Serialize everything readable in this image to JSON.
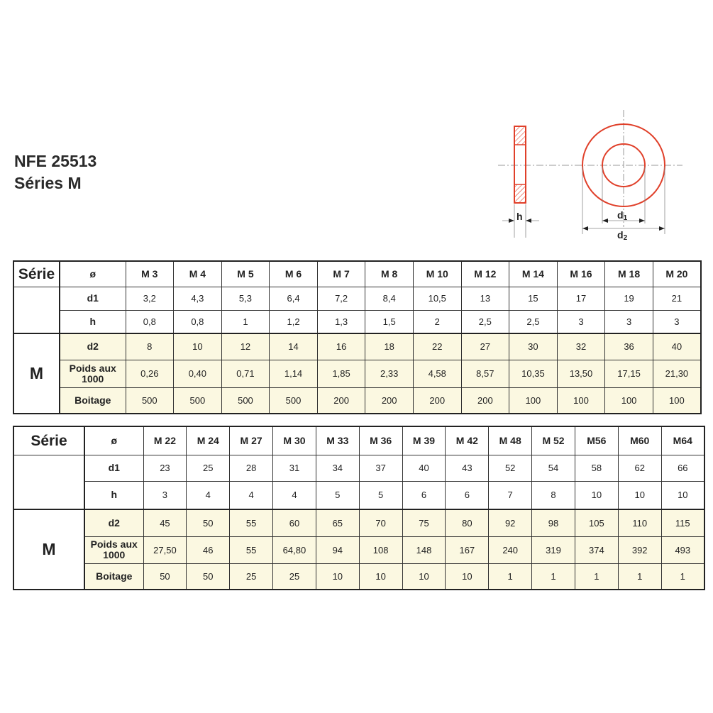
{
  "title": {
    "line1": "NFE 25513",
    "line2": "Séries M"
  },
  "diagram": {
    "h_label": "h",
    "d1_label": "d",
    "d1_sub": "1",
    "d2_label": "d",
    "d2_sub": "2",
    "color": "#e0402a"
  },
  "fill_color": "#fbf8e1",
  "tables": [
    {
      "serie_label": "Série",
      "serie_value": "M",
      "diam_label": "ø",
      "sizes": [
        "M 3",
        "M 4",
        "M 5",
        "M 6",
        "M 7",
        "M 8",
        "M 10",
        "M 12",
        "M 14",
        "M 16",
        "M 18",
        "M 20"
      ],
      "rows": [
        {
          "label": "d1",
          "values": [
            "3,2",
            "4,3",
            "5,3",
            "6,4",
            "7,2",
            "8,4",
            "10,5",
            "13",
            "15",
            "17",
            "19",
            "21"
          ]
        },
        {
          "label": "h",
          "values": [
            "0,8",
            "0,8",
            "1",
            "1,2",
            "1,3",
            "1,5",
            "2",
            "2,5",
            "2,5",
            "3",
            "3",
            "3"
          ]
        },
        {
          "label": "d2",
          "values": [
            "8",
            "10",
            "12",
            "14",
            "16",
            "18",
            "22",
            "27",
            "30",
            "32",
            "36",
            "40"
          ]
        },
        {
          "label": "Poids aux 1000",
          "values": [
            "0,26",
            "0,40",
            "0,71",
            "1,14",
            "1,85",
            "2,33",
            "4,58",
            "8,57",
            "10,35",
            "13,50",
            "17,15",
            "21,30"
          ]
        },
        {
          "label": "Boitage",
          "values": [
            "500",
            "500",
            "500",
            "500",
            "200",
            "200",
            "200",
            "200",
            "100",
            "100",
            "100",
            "100"
          ]
        }
      ]
    },
    {
      "serie_label": "Série",
      "serie_value": "M",
      "diam_label": "ø",
      "sizes": [
        "M 22",
        "M 24",
        "M 27",
        "M 30",
        "M 33",
        "M 36",
        "M 39",
        "M 42",
        "M 48",
        "M 52",
        "M56",
        "M60",
        "M64"
      ],
      "rows": [
        {
          "label": "d1",
          "values": [
            "23",
            "25",
            "28",
            "31",
            "34",
            "37",
            "40",
            "43",
            "52",
            "54",
            "58",
            "62",
            "66"
          ]
        },
        {
          "label": "h",
          "values": [
            "3",
            "4",
            "4",
            "4",
            "5",
            "5",
            "6",
            "6",
            "7",
            "8",
            "10",
            "10",
            "10"
          ]
        },
        {
          "label": "d2",
          "values": [
            "45",
            "50",
            "55",
            "60",
            "65",
            "70",
            "75",
            "80",
            "92",
            "98",
            "105",
            "110",
            "115"
          ]
        },
        {
          "label": "Poids aux 1000",
          "values": [
            "27,50",
            "46",
            "55",
            "64,80",
            "94",
            "108",
            "148",
            "167",
            "240",
            "319",
            "374",
            "392",
            "493"
          ]
        },
        {
          "label": "Boitage",
          "values": [
            "50",
            "50",
            "25",
            "25",
            "10",
            "10",
            "10",
            "10",
            "1",
            "1",
            "1",
            "1",
            "1"
          ]
        }
      ]
    }
  ]
}
